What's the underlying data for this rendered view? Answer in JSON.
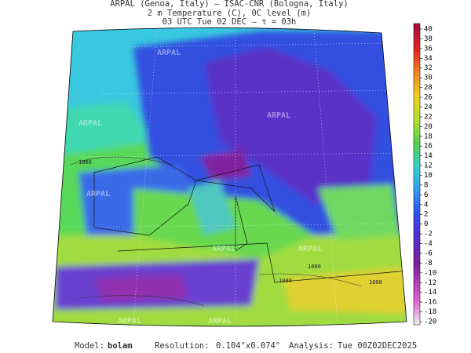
{
  "header": {
    "lines": [
      "ARPAL (Genoa, Italy)  —  ISAC-CNR (Bologna, Italy)",
      "2 m Temperature (C), 0C level (m)",
      "03 UTC Tue 02 DEC  –  τ = 03h"
    ]
  },
  "colorbar": {
    "ticks": [
      40,
      38,
      36,
      34,
      32,
      30,
      28,
      26,
      24,
      22,
      20,
      18,
      16,
      14,
      12,
      10,
      8,
      6,
      4,
      2,
      0,
      -2,
      -4,
      -6,
      -8,
      -10,
      -12,
      -14,
      -16,
      -18,
      -20
    ]
  },
  "map": {
    "contour_labels": [
      "1000",
      "1000",
      "1000",
      "1000"
    ],
    "watermarks": [
      "ARPAL",
      "ARPAL",
      "ARPAL",
      "ARPAL",
      "ARPAL",
      "ARPAL",
      "ARPAL",
      "ARPAL"
    ]
  },
  "footer": {
    "model_label": "Model:",
    "model": "bolam",
    "resolution_label": "Resolution:",
    "resolution": "0.104°x0.074°",
    "analysis_label": "Analysis:",
    "analysis": "Tue 00Z02DEC2025"
  }
}
